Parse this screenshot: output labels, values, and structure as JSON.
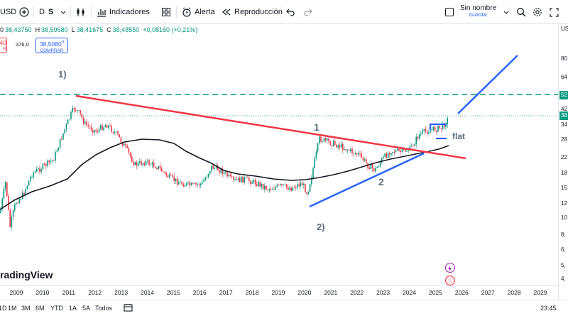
{
  "toolbar": {
    "symbol_fragment": "USD",
    "interval_d": "D",
    "interval_s": "S",
    "indicators_label": "Indicadores",
    "alert_label": "Alerta",
    "replay_label": "Reproducción",
    "layout_name": "Sin nombre",
    "save_label": "Guardar"
  },
  "ohlc": {
    "open_fragment": "0",
    "open_value": "38,43750",
    "high_label": "H",
    "high_value": "38,59680",
    "low_label": "L",
    "low_value": "38,41675",
    "close_label": "C",
    "close_value": "38,48550",
    "change": "+0,08160 (+0,21%)"
  },
  "trade": {
    "sell_value_fragment": "40",
    "sell_label_fragment": "R",
    "spread": "376,0",
    "buy_value": "38,5080",
    "buy_sup": "0",
    "buy_label": "COMPRAR"
  },
  "y_axis": {
    "unit_fragment": "USD",
    "ticks": [
      "80",
      "64",
      "52",
      "42",
      "38",
      "34",
      "28",
      "22",
      "18",
      "15",
      "12",
      "10",
      "8,",
      "6,",
      "5,",
      "4,"
    ]
  },
  "x_axis": {
    "ticks": [
      "2009",
      "2010",
      "2011",
      "2012",
      "2013",
      "2014",
      "2015",
      "2016",
      "2017",
      "2018",
      "2019",
      "2020",
      "2021",
      "2022",
      "2023",
      "2024",
      "2025",
      "2026",
      "2027",
      "2028",
      "2029"
    ]
  },
  "annotations": {
    "a1": "1)",
    "a2": "2)",
    "wave1": "1",
    "wave2": "2",
    "flat": "flat"
  },
  "watermark": "radingView",
  "bottom_bar": {
    "ranges": [
      "1D",
      "1M",
      "3M",
      "6M",
      "YTD",
      "1A",
      "5A",
      "Todos"
    ],
    "time": "23:45"
  },
  "colors": {
    "resistance_line": "#f23645",
    "support_line": "#2962ff",
    "level_line": "#089981",
    "moving_average": "#131722",
    "candle_up": "#089981",
    "candle_down": "#f23645"
  }
}
